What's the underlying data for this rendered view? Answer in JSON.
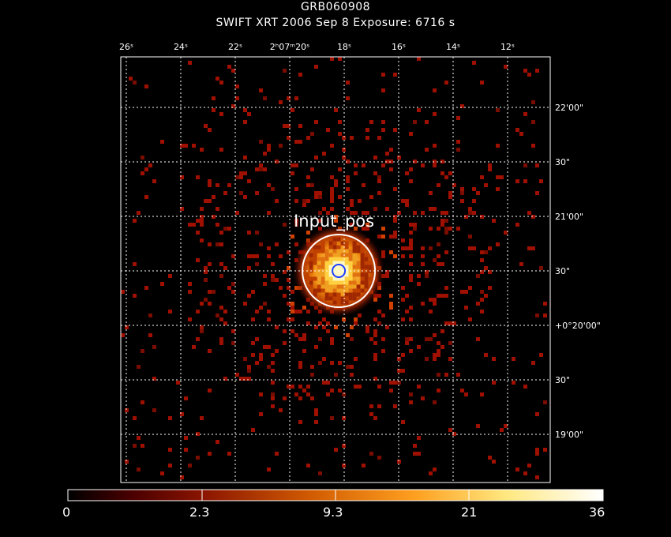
{
  "header": {
    "title": "GRB060908",
    "subtitle": "SWIFT XRT   2006 Sep  8    Exposure: 6716 s"
  },
  "axes": {
    "ra_ticks": [
      {
        "ra_sec": 26,
        "label": "26ˢ"
      },
      {
        "ra_sec": 24,
        "label": "24ˢ"
      },
      {
        "ra_sec": 22,
        "label": "22ˢ"
      },
      {
        "ra_sec": 20,
        "label": "2ʰ07ᵐ20ˢ"
      },
      {
        "ra_sec": 18,
        "label": "18ˢ"
      },
      {
        "ra_sec": 16,
        "label": "16ˢ"
      },
      {
        "ra_sec": 14,
        "label": "14ˢ"
      },
      {
        "ra_sec": 12,
        "label": "12ˢ"
      }
    ],
    "dec_ticks": [
      {
        "dec_arcsec": 1320,
        "label": "22'00\""
      },
      {
        "dec_arcsec": 1290,
        "label": "30\""
      },
      {
        "dec_arcsec": 1260,
        "label": "21'00\""
      },
      {
        "dec_arcsec": 1230,
        "label": "30\""
      },
      {
        "dec_arcsec": 1200,
        "label": "+0°20'00\""
      },
      {
        "dec_arcsec": 1170,
        "label": "30\""
      },
      {
        "dec_arcsec": 1140,
        "label": "19'00\""
      }
    ],
    "grid": true
  },
  "source": {
    "label": "Input_pos",
    "ra_sec": 18.2,
    "dec_arcsec": 1230
  },
  "colorbar": {
    "labels": [
      "0",
      "2.3",
      "9.3",
      "21",
      "36"
    ],
    "colors": [
      "#000000",
      "#5a0000",
      "#a02000",
      "#e07000",
      "#ffc030",
      "#ffffa0",
      "#ffffff"
    ]
  },
  "colors": {
    "grid": "#ffffff",
    "source_circle": "#ffffff",
    "error_circle": "#2040ff",
    "pixel_low": "#a01000",
    "pixel_high": "#fff0a0"
  }
}
